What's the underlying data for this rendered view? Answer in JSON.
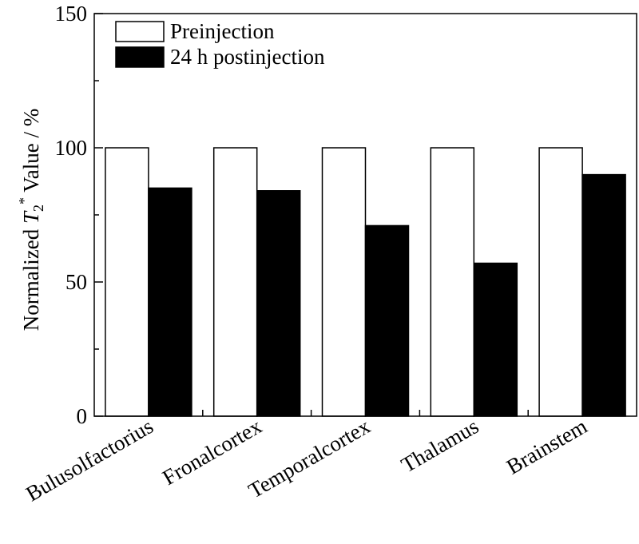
{
  "chart_data": {
    "type": "bar",
    "categories": [
      "Bulusolfactorius",
      "Fronalcortex",
      "Temporalcortex",
      "Thalamus",
      "Brainstem"
    ],
    "series": [
      {
        "name": "Preinjection",
        "values": [
          100,
          100,
          100,
          100,
          100
        ],
        "color": "#ffffff"
      },
      {
        "name": "24 h postinjection",
        "values": [
          85,
          84,
          71,
          57,
          90
        ],
        "color": "#000000"
      }
    ],
    "ylabel": {
      "pre": "Normalized ",
      "var": "T",
      "sub": "2",
      "sup": "*",
      "post": " Value / %"
    },
    "ylim": [
      0,
      150
    ],
    "yticks": [
      "0",
      "50",
      "100",
      "150"
    ],
    "legend_position": "top-left",
    "grid": false
  }
}
